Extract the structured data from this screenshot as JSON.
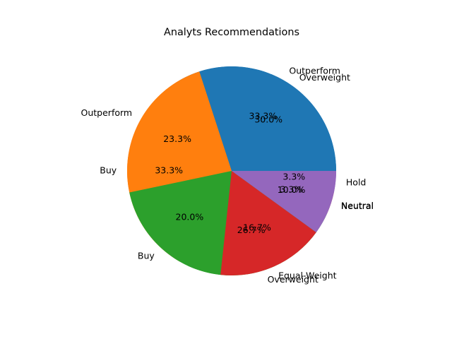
{
  "chart_data": {
    "type": "pie",
    "title": "Analyts Recommendations",
    "pies": [
      {
        "name": "",
        "slices": [
          {
            "label": "Outperform",
            "value": 33.3,
            "pct_label": "33.3%",
            "color": "#1f77b4"
          },
          {
            "label": "Buy",
            "value": 33.3,
            "pct_label": "33.3%",
            "color": "#ff7f0e"
          },
          {
            "label": "Overweight",
            "value": 26.7,
            "pct_label": "26.7%",
            "color": "#2ca02c"
          },
          {
            "label": "Neutral",
            "value": 3.3,
            "pct_label": "3.3%",
            "color": "#d62728"
          },
          {
            "label": "Hold",
            "value": 3.3,
            "pct_label": "3.3%",
            "color": "#9467bd"
          }
        ]
      },
      {
        "name": "",
        "slices": [
          {
            "label": "Overweight",
            "value": 30.0,
            "pct_label": "30.0%",
            "color": "#1f77b4"
          },
          {
            "label": "Outperform",
            "value": 23.3,
            "pct_label": "23.3%",
            "color": "#ff7f0e"
          },
          {
            "label": "Buy",
            "value": 20.0,
            "pct_label": "20.0%",
            "color": "#2ca02c"
          },
          {
            "label": "Equal-Weight",
            "value": 16.7,
            "pct_label": "16.7%",
            "color": "#d62728"
          },
          {
            "label": "Neutral",
            "value": 10.0,
            "pct_label": "10.0%",
            "color": "#9467bd"
          }
        ]
      }
    ],
    "legend": "none"
  }
}
